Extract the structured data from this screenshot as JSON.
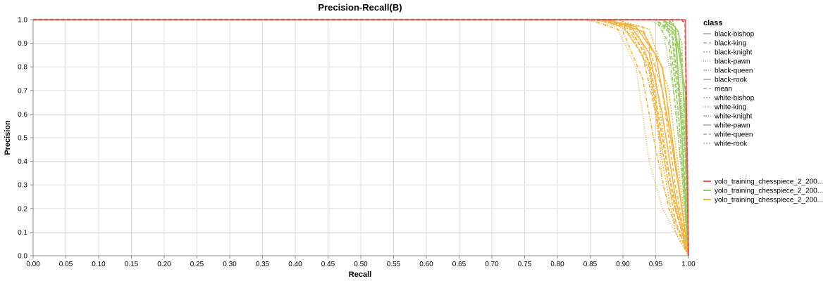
{
  "chart_data": {
    "type": "line",
    "title": "Precision-Recall(B)",
    "xlabel": "Recall",
    "ylabel": "Precision",
    "xlim": [
      0,
      1
    ],
    "ylim": [
      0,
      1
    ],
    "grid": true,
    "x_ticks": [
      "0.00",
      "0.05",
      "0.10",
      "0.15",
      "0.20",
      "0.25",
      "0.30",
      "0.35",
      "0.40",
      "0.45",
      "0.50",
      "0.55",
      "0.60",
      "0.65",
      "0.70",
      "0.75",
      "0.80",
      "0.85",
      "0.90",
      "0.95",
      "1.00"
    ],
    "y_ticks": [
      "0.0",
      "0.1",
      "0.2",
      "0.3",
      "0.4",
      "0.5",
      "0.6",
      "0.7",
      "0.8",
      "0.9",
      "1.0"
    ],
    "legend_position": "right",
    "class_legend": {
      "title": "class",
      "items": [
        {
          "label": "black-bishop",
          "dash": "solid"
        },
        {
          "label": "black-king",
          "dash": "dashed"
        },
        {
          "label": "black-knight",
          "dash": "dotted"
        },
        {
          "label": "black-pawn",
          "dash": "fine-dotted"
        },
        {
          "label": "black-queen",
          "dash": "dashdot"
        },
        {
          "label": "black-rook",
          "dash": "solid"
        },
        {
          "label": "mean",
          "dash": "dashed"
        },
        {
          "label": "white-bishop",
          "dash": "dotted"
        },
        {
          "label": "white-king",
          "dash": "fine-dotted"
        },
        {
          "label": "white-knight",
          "dash": "dashdot"
        },
        {
          "label": "white-pawn",
          "dash": "solid"
        },
        {
          "label": "white-queen",
          "dash": "dashed"
        },
        {
          "label": "white-rook",
          "dash": "dotted"
        }
      ]
    },
    "run_legend": {
      "items": [
        {
          "label": "yolo_training_chesspiece_2_200...",
          "color": "#e45756"
        },
        {
          "label": "yolo_training_chesspiece_2_200...",
          "color": "#9ccc65"
        },
        {
          "label": "yolo_training_chesspiece_2_200...",
          "color": "#f2b43c"
        }
      ]
    },
    "series": [
      {
        "run": 2,
        "class": "black-bishop",
        "points": [
          [
            0,
            1
          ],
          [
            0.87,
            1
          ],
          [
            0.92,
            0.97
          ],
          [
            0.95,
            0.85
          ],
          [
            0.97,
            0.55
          ],
          [
            0.99,
            0.2
          ],
          [
            1,
            0
          ]
        ]
      },
      {
        "run": 2,
        "class": "black-king",
        "points": [
          [
            0,
            1
          ],
          [
            0.85,
            1
          ],
          [
            0.9,
            0.98
          ],
          [
            0.94,
            0.8
          ],
          [
            0.96,
            0.45
          ],
          [
            0.98,
            0.15
          ],
          [
            1,
            0
          ]
        ]
      },
      {
        "run": 2,
        "class": "black-knight",
        "points": [
          [
            0,
            1
          ],
          [
            0.86,
            1
          ],
          [
            0.91,
            0.96
          ],
          [
            0.94,
            0.78
          ],
          [
            0.96,
            0.4
          ],
          [
            0.98,
            0.1
          ],
          [
            1,
            0
          ]
        ]
      },
      {
        "run": 2,
        "class": "black-pawn",
        "points": [
          [
            0,
            1
          ],
          [
            0.84,
            1
          ],
          [
            0.89,
            0.97
          ],
          [
            0.92,
            0.8
          ],
          [
            0.94,
            0.4
          ],
          [
            0.96,
            0.2
          ],
          [
            1,
            0
          ]
        ]
      },
      {
        "run": 2,
        "class": "black-queen",
        "points": [
          [
            0,
            1
          ],
          [
            0.86,
            1
          ],
          [
            0.9,
            0.97
          ],
          [
            0.93,
            0.85
          ],
          [
            0.95,
            0.6
          ],
          [
            0.97,
            0.3
          ],
          [
            1,
            0
          ]
        ]
      },
      {
        "run": 2,
        "class": "black-rook",
        "points": [
          [
            0,
            1
          ],
          [
            0.88,
            1
          ],
          [
            0.93,
            0.95
          ],
          [
            0.96,
            0.8
          ],
          [
            0.98,
            0.4
          ],
          [
            1,
            0
          ]
        ]
      },
      {
        "run": 2,
        "class": "mean",
        "points": [
          [
            0,
            1
          ],
          [
            0.86,
            1
          ],
          [
            0.91,
            0.97
          ],
          [
            0.94,
            0.82
          ],
          [
            0.96,
            0.5
          ],
          [
            0.98,
            0.2
          ],
          [
            1,
            0
          ]
        ]
      },
      {
        "run": 2,
        "class": "white-bishop",
        "points": [
          [
            0,
            1
          ],
          [
            0.87,
            1
          ],
          [
            0.92,
            0.96
          ],
          [
            0.95,
            0.75
          ],
          [
            0.97,
            0.35
          ],
          [
            0.99,
            0.1
          ],
          [
            1,
            0
          ]
        ]
      },
      {
        "run": 2,
        "class": "white-king",
        "points": [
          [
            0,
            1
          ],
          [
            0.88,
            1
          ],
          [
            0.93,
            0.9
          ],
          [
            0.95,
            0.7
          ],
          [
            0.96,
            0.3
          ],
          [
            1,
            0
          ]
        ]
      },
      {
        "run": 2,
        "class": "white-knight",
        "points": [
          [
            0,
            1
          ],
          [
            0.85,
            1
          ],
          [
            0.9,
            0.95
          ],
          [
            0.93,
            0.75
          ],
          [
            0.95,
            0.45
          ],
          [
            0.97,
            0.2
          ],
          [
            1,
            0
          ]
        ]
      },
      {
        "run": 2,
        "class": "white-pawn",
        "points": [
          [
            0,
            1
          ],
          [
            0.86,
            1
          ],
          [
            0.91,
            0.98
          ],
          [
            0.94,
            0.86
          ],
          [
            0.96,
            0.6
          ],
          [
            0.98,
            0.25
          ],
          [
            1,
            0
          ]
        ]
      },
      {
        "run": 2,
        "class": "white-queen",
        "points": [
          [
            0,
            1
          ],
          [
            0.87,
            1
          ],
          [
            0.93,
            0.97
          ],
          [
            0.96,
            0.7
          ],
          [
            0.98,
            0.3
          ],
          [
            1,
            0
          ]
        ]
      },
      {
        "run": 2,
        "class": "white-rook",
        "points": [
          [
            0,
            1
          ],
          [
            0.89,
            1
          ],
          [
            0.94,
            0.96
          ],
          [
            0.97,
            0.7
          ],
          [
            0.99,
            0.25
          ],
          [
            1,
            0
          ]
        ]
      },
      {
        "run": 1,
        "class": "black-bishop",
        "points": [
          [
            0,
            1
          ],
          [
            0.96,
            1
          ],
          [
            0.98,
            0.97
          ],
          [
            0.99,
            0.5
          ],
          [
            1,
            0
          ]
        ]
      },
      {
        "run": 1,
        "class": "black-king",
        "points": [
          [
            0,
            1
          ],
          [
            0.95,
            1
          ],
          [
            0.97,
            0.95
          ],
          [
            0.985,
            0.6
          ],
          [
            1,
            0
          ]
        ]
      },
      {
        "run": 1,
        "class": "black-knight",
        "points": [
          [
            0,
            1
          ],
          [
            0.95,
            1
          ],
          [
            0.975,
            0.93
          ],
          [
            0.99,
            0.4
          ],
          [
            1,
            0
          ]
        ]
      },
      {
        "run": 1,
        "class": "black-pawn",
        "points": [
          [
            0,
            1
          ],
          [
            0.94,
            1
          ],
          [
            0.96,
            0.97
          ],
          [
            0.98,
            0.65
          ],
          [
            1,
            0
          ]
        ]
      },
      {
        "run": 1,
        "class": "black-queen",
        "points": [
          [
            0,
            1
          ],
          [
            0.96,
            1
          ],
          [
            0.98,
            0.9
          ],
          [
            0.995,
            0.45
          ],
          [
            1,
            0
          ]
        ]
      },
      {
        "run": 1,
        "class": "black-rook",
        "points": [
          [
            0,
            1
          ],
          [
            0.97,
            1
          ],
          [
            0.985,
            0.95
          ],
          [
            0.995,
            0.6
          ],
          [
            1,
            0
          ]
        ]
      },
      {
        "run": 1,
        "class": "mean",
        "points": [
          [
            0,
            1
          ],
          [
            0.95,
            1
          ],
          [
            0.975,
            0.95
          ],
          [
            0.99,
            0.55
          ],
          [
            1,
            0
          ]
        ]
      },
      {
        "run": 1,
        "class": "white-bishop",
        "points": [
          [
            0,
            1
          ],
          [
            0.96,
            1
          ],
          [
            0.98,
            0.93
          ],
          [
            0.99,
            0.5
          ],
          [
            1,
            0
          ]
        ]
      },
      {
        "run": 1,
        "class": "white-king",
        "points": [
          [
            0,
            1
          ],
          [
            0.97,
            1
          ],
          [
            0.985,
            0.9
          ],
          [
            0.995,
            0.4
          ],
          [
            1,
            0
          ]
        ]
      },
      {
        "run": 1,
        "class": "white-knight",
        "points": [
          [
            0,
            1
          ],
          [
            0.95,
            1
          ],
          [
            0.97,
            0.9
          ],
          [
            0.99,
            0.35
          ],
          [
            1,
            0
          ]
        ]
      },
      {
        "run": 1,
        "class": "white-pawn",
        "points": [
          [
            0,
            1
          ],
          [
            0.96,
            1
          ],
          [
            0.98,
            0.95
          ],
          [
            0.995,
            0.7
          ],
          [
            1,
            0
          ]
        ]
      },
      {
        "run": 1,
        "class": "white-queen",
        "points": [
          [
            0,
            1
          ],
          [
            0.97,
            1
          ],
          [
            0.99,
            0.85
          ],
          [
            1,
            0
          ]
        ]
      },
      {
        "run": 1,
        "class": "white-rook",
        "points": [
          [
            0,
            1
          ],
          [
            0.975,
            1
          ],
          [
            0.99,
            0.9
          ],
          [
            1,
            0
          ]
        ]
      },
      {
        "run": 0,
        "class": "mean",
        "points": [
          [
            0,
            1
          ],
          [
            0.99,
            1
          ],
          [
            0.995,
            0.98
          ],
          [
            1,
            0
          ]
        ]
      },
      {
        "run": 0,
        "class": "black-rook",
        "points": [
          [
            0,
            1
          ],
          [
            0.995,
            1
          ],
          [
            1,
            0
          ]
        ]
      }
    ]
  }
}
